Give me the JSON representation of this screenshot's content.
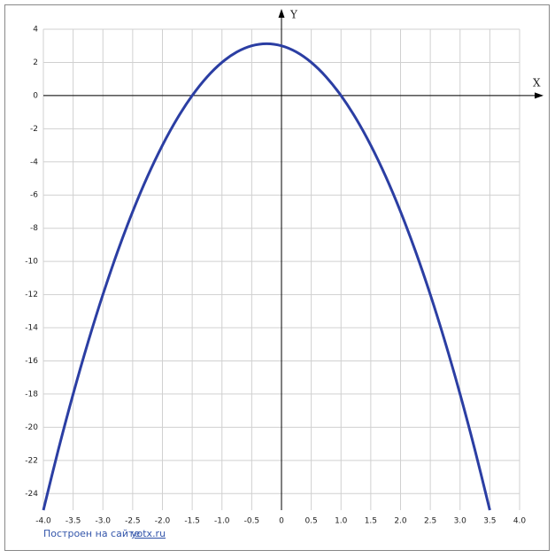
{
  "chart_data": {
    "type": "line",
    "x_label": "X",
    "y_label": "Y",
    "footer": "Построен на сайте",
    "footer_link": "yotx.ru",
    "xlim": [
      -4,
      4
    ],
    "ylim": [
      -25,
      4
    ],
    "xticks": [
      {
        "value": -4,
        "label": "-4.0"
      },
      {
        "value": -3.5,
        "label": "-3.5"
      },
      {
        "value": -3,
        "label": "-3.0"
      },
      {
        "value": -2.5,
        "label": "-2.5"
      },
      {
        "value": -2,
        "label": "-2.0"
      },
      {
        "value": -1.5,
        "label": "-1.5"
      },
      {
        "value": -1,
        "label": "-1.0"
      },
      {
        "value": -0.5,
        "label": "-0.5"
      },
      0,
      0.5,
      {
        "value": 1,
        "label": "1.0"
      },
      1.5,
      {
        "value": 2,
        "label": "2.0"
      },
      2.5,
      {
        "value": 3,
        "label": "3.0"
      },
      3.5,
      {
        "value": 4,
        "label": "4.0"
      }
    ],
    "yticks": [
      4,
      2,
      0,
      -2,
      -4,
      -6,
      -8,
      -10,
      -12,
      -14,
      -16,
      -18,
      -20,
      -22,
      -24
    ],
    "grid": true,
    "x": [
      -4,
      -3.75,
      -3.5,
      -3.25,
      -3,
      -2.75,
      -2.5,
      -2.25,
      -2,
      -1.75,
      -1.5,
      -1.25,
      -1,
      -0.75,
      -0.5,
      -0.25,
      0,
      0.25,
      0.5,
      0.75,
      1,
      1.25,
      1.5,
      1.75,
      2,
      2.25,
      2.5,
      2.75,
      3,
      3.25,
      3.5
    ],
    "series": [
      {
        "color": "#2b3ea3",
        "values": [
          -25,
          -21.375,
          -18,
          -14.875,
          -12,
          -9.375,
          -7,
          -4.875,
          -3,
          -1.375,
          0,
          1.125,
          2,
          2.625,
          3,
          3.125,
          3,
          2.625,
          2,
          1.125,
          0,
          -1.375,
          -3,
          -4.875,
          -7,
          -9.375,
          -12,
          -14.875,
          -18,
          -21.375,
          -25
        ]
      }
    ]
  }
}
